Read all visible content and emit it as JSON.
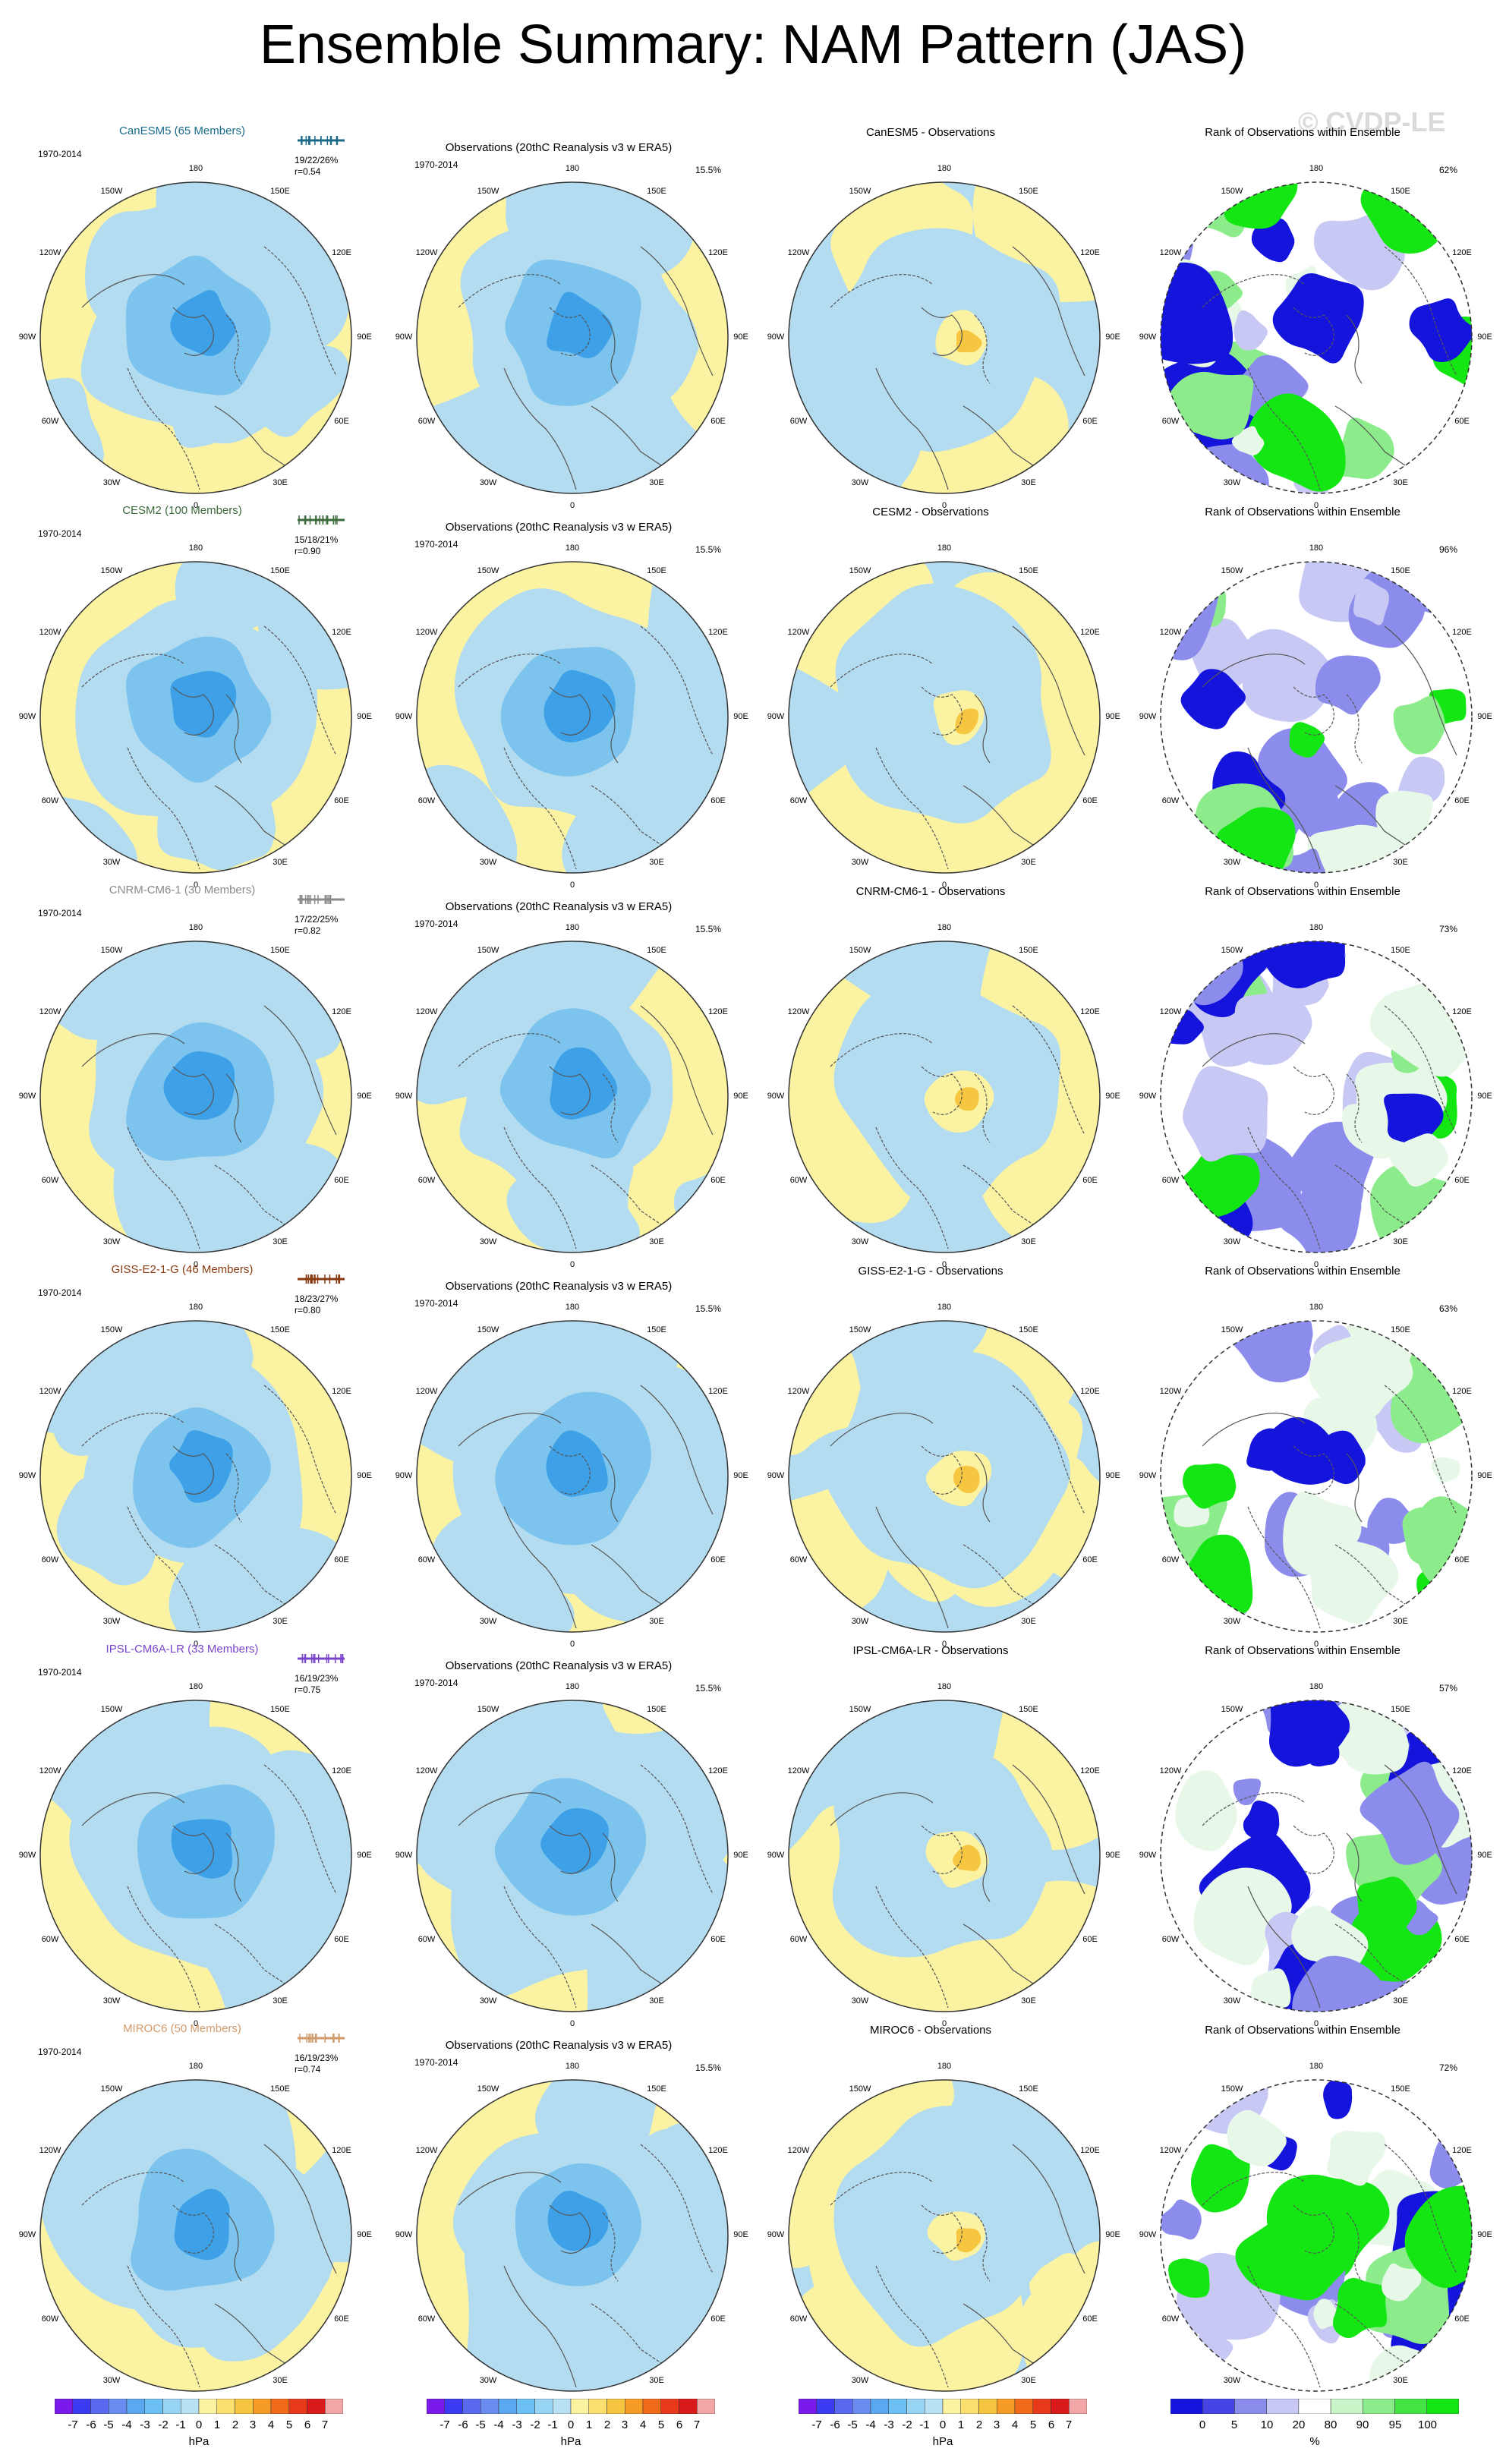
{
  "title": "Ensemble Summary: NAM Pattern (JAS)",
  "watermark": "© CVDP-LE",
  "axis_labels": [
    "180",
    "150E",
    "120E",
    "90E",
    "60E",
    "30E",
    "0",
    "30W",
    "60W",
    "90W",
    "120W",
    "150W"
  ],
  "period": "1970-2014",
  "obs_title": "Observations (20thC Reanalysis v3 w ERA5)",
  "obs_pct": "15.5%",
  "rank_title": "Rank of Observations within Ensemble",
  "colors": {
    "neg_light": "#b4dcf0",
    "neg_mid": "#7cc4ee",
    "neg_dark": "#3ea0e6",
    "pos_light": "#fbf3a2",
    "pos_mid": "#f6c640",
    "rank_low": "#1414dc",
    "rank_mid": "#c8c8f4",
    "rank_high": "#14e614"
  },
  "models": [
    {
      "title": "CanESM5 (65 Members)",
      "color": "#1a6a8a",
      "stats": "19/22/26%",
      "r": "r=0.54",
      "diff_title": "CanESM5 - Observations",
      "rank_pct": "62%"
    },
    {
      "title": "CESM2 (100 Members)",
      "color": "#3c6b3c",
      "stats": "15/18/21%",
      "r": "r=0.90",
      "diff_title": "CESM2 - Observations",
      "rank_pct": "96%"
    },
    {
      "title": "CNRM-CM6-1 (30 Members)",
      "color": "#8a8a8a",
      "stats": "17/22/25%",
      "r": "r=0.82",
      "diff_title": "CNRM-CM6-1 - Observations",
      "rank_pct": "73%"
    },
    {
      "title": "GISS-E2-1-G (46 Members)",
      "color": "#8a3a10",
      "stats": "18/23/27%",
      "r": "r=0.80",
      "diff_title": "GISS-E2-1-G - Observations",
      "rank_pct": "63%"
    },
    {
      "title": "IPSL-CM6A-LR (33 Members)",
      "color": "#7a44cc",
      "stats": "16/19/23%",
      "r": "r=0.75",
      "diff_title": "IPSL-CM6A-LR - Observations",
      "rank_pct": "57%"
    },
    {
      "title": "MIROC6 (50 Members)",
      "color": "#d09a6a",
      "stats": "16/19/23%",
      "r": "r=0.74",
      "diff_title": "MIROC6 - Observations",
      "rank_pct": "72%"
    }
  ],
  "colorbar_hpa": {
    "ticks": [
      "-7",
      "-6",
      "-5",
      "-4",
      "-3",
      "-2",
      "-1",
      "0",
      "1",
      "2",
      "3",
      "4",
      "5",
      "6",
      "7"
    ],
    "colors": [
      "#7a1aea",
      "#3a3af0",
      "#5a6af0",
      "#6a8cf0",
      "#5aa8f0",
      "#6cc0f4",
      "#98d4f4",
      "#b8e2f4",
      "#fbf3a2",
      "#fbe070",
      "#f6c640",
      "#f69a28",
      "#f06a1a",
      "#e63a1a",
      "#d81a1a",
      "#f2a6a6"
    ],
    "unit": "hPa"
  },
  "colorbar_rank": {
    "ticks": [
      "0",
      "5",
      "10",
      "20",
      "80",
      "90",
      "95",
      "100"
    ],
    "colors": [
      "#1414dc",
      "#4444e4",
      "#8c8cec",
      "#c8c8f4",
      "#ffffff",
      "#c8f4c8",
      "#8cec8c",
      "#44e444",
      "#14e614"
    ],
    "unit": "%"
  }
}
